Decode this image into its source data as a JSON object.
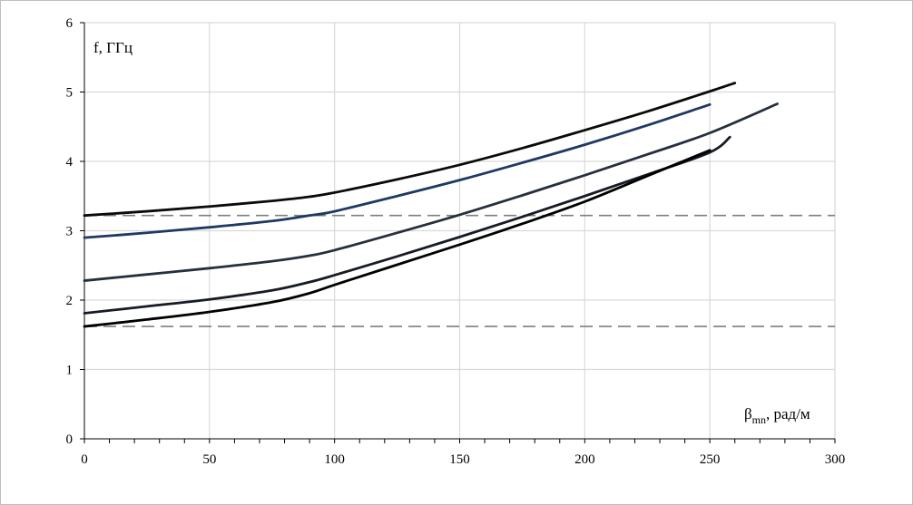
{
  "chart_data": {
    "type": "line",
    "ylabel": "f, ГГц",
    "xlabel": {
      "symbol": "β",
      "subscript": "mn",
      "unit": ", рад/м"
    },
    "xlim": [
      0,
      300
    ],
    "ylim": [
      0,
      6
    ],
    "x_ticks": [
      0,
      50,
      100,
      150,
      200,
      250,
      300
    ],
    "y_ticks": [
      0,
      1,
      2,
      3,
      4,
      5,
      6
    ],
    "x_tick_labels": [
      "0",
      "50",
      "100",
      "150",
      "200",
      "250",
      "300"
    ],
    "y_tick_labels": [
      "0",
      "1",
      "2",
      "3",
      "4",
      "5",
      "6"
    ],
    "grid": true,
    "reference_lines": [
      {
        "y": 3.22,
        "style": "dashed",
        "color": "#7f7f7f"
      },
      {
        "y": 1.62,
        "style": "dashed",
        "color": "#7f7f7f"
      }
    ],
    "series": [
      {
        "color": "#0a0a0a",
        "x": [
          0,
          25,
          50,
          75,
          90,
          100,
          125,
          150,
          175,
          200,
          225,
          250,
          260
        ],
        "y": [
          3.22,
          3.28,
          3.35,
          3.43,
          3.49,
          3.55,
          3.74,
          3.95,
          4.19,
          4.45,
          4.72,
          5.01,
          5.13
        ]
      },
      {
        "color": "#1f3864",
        "x": [
          0,
          25,
          50,
          75,
          90,
          100,
          125,
          150,
          175,
          200,
          225,
          250
        ],
        "y": [
          2.9,
          2.97,
          3.05,
          3.14,
          3.22,
          3.28,
          3.5,
          3.73,
          3.98,
          4.24,
          4.52,
          4.82
        ]
      },
      {
        "color": "#262f3d",
        "x": [
          0,
          25,
          50,
          75,
          90,
          100,
          125,
          150,
          175,
          200,
          225,
          250,
          277
        ],
        "y": [
          2.28,
          2.37,
          2.46,
          2.56,
          2.64,
          2.72,
          2.97,
          3.23,
          3.51,
          3.8,
          4.1,
          4.41,
          4.83
        ]
      },
      {
        "color": "#161b24",
        "x": [
          0,
          25,
          50,
          75,
          90,
          100,
          125,
          150,
          175,
          200,
          225,
          250,
          258
        ],
        "y": [
          1.81,
          1.91,
          2.01,
          2.14,
          2.26,
          2.36,
          2.63,
          2.91,
          3.2,
          3.5,
          3.81,
          4.13,
          4.35
        ]
      },
      {
        "color": "#000000",
        "x": [
          0,
          25,
          50,
          75,
          90,
          100,
          125,
          150,
          175,
          200,
          225,
          250
        ],
        "y": [
          1.62,
          1.72,
          1.83,
          1.97,
          2.1,
          2.22,
          2.51,
          2.8,
          3.1,
          3.42,
          3.79,
          4.16
        ]
      }
    ]
  }
}
